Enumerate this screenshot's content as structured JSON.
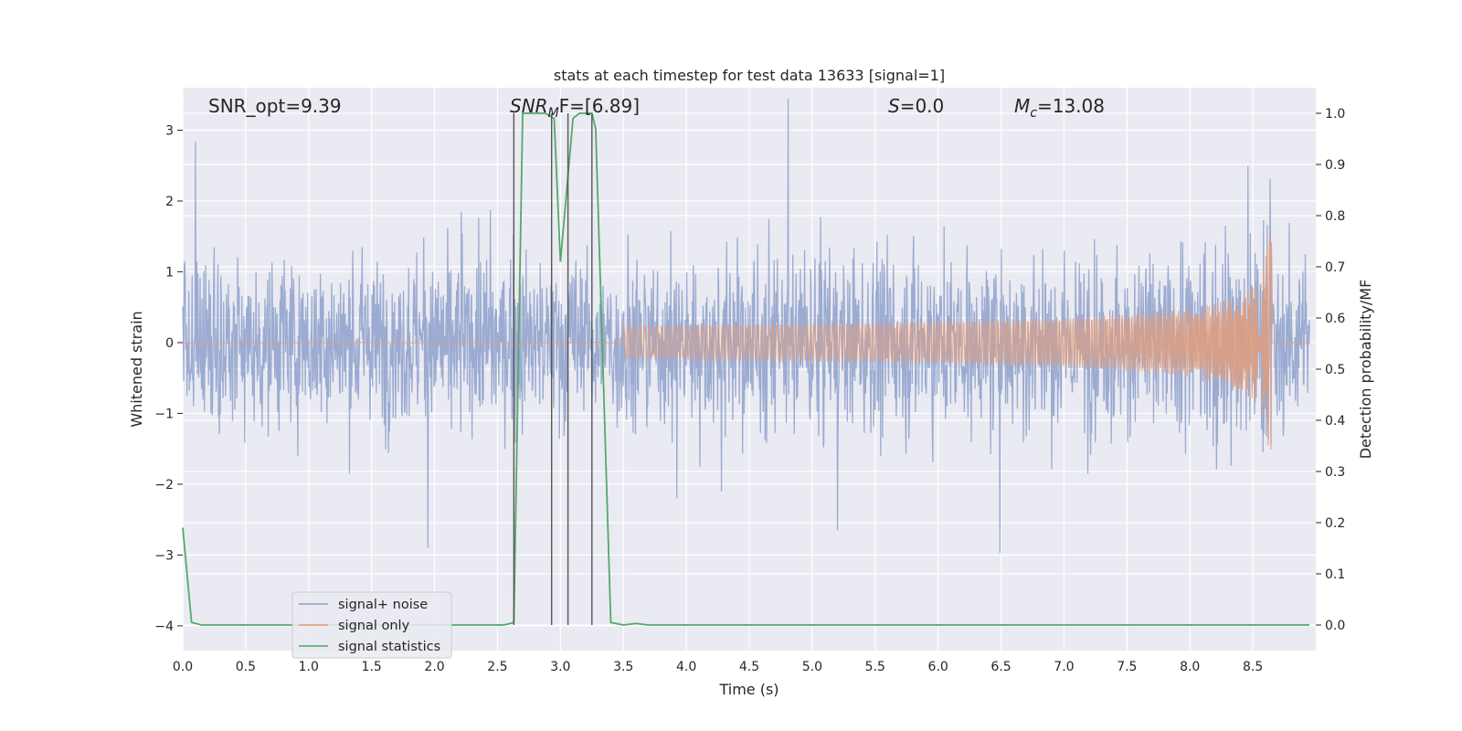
{
  "chart_data": {
    "type": "line",
    "title": "stats at each timestep for test data 13633 [signal=1]",
    "xlabel": "Time (s)",
    "ylabel": "Whitened strain",
    "y2label": "Detection probability/MF",
    "xlim": [
      0.0,
      9.0
    ],
    "ylim": [
      -4.35,
      3.6
    ],
    "y2lim": [
      -0.05,
      1.05
    ],
    "xticks": [
      "0.0",
      "0.5",
      "1.0",
      "1.5",
      "2.0",
      "2.5",
      "3.0",
      "3.5",
      "4.0",
      "4.5",
      "5.0",
      "5.5",
      "6.0",
      "6.5",
      "7.0",
      "7.5",
      "8.0",
      "8.5"
    ],
    "yticks": [
      "3",
      "2",
      "1",
      "0",
      "−1",
      "−2",
      "−3",
      "−4"
    ],
    "y2ticks": [
      "1.0",
      "0.9",
      "0.8",
      "0.7",
      "0.6",
      "0.5",
      "0.4",
      "0.3",
      "0.2",
      "0.1",
      "0.0"
    ],
    "grid": true,
    "legend_position": "lower-left",
    "annotations": {
      "snr_opt": "SNR_opt=9.39",
      "snr_mf_base": "SNR",
      "snr_mf_sub": "M",
      "snr_mf_rest": "F=[6.89]",
      "s_base": "S",
      "s_rest": "=0.0",
      "mc_base": "M",
      "mc_sub": "c",
      "mc_rest": "=13.08"
    },
    "series": [
      {
        "name": "signal+ noise",
        "color": "#8da0cb",
        "description": "whitened noisy strain, approx amplitude envelope ±1.8 with peaks to ±3"
      },
      {
        "name": "signal only",
        "color": "#e19c7d",
        "description": "chirp signal growing in amplitude, merger near t=8.65 s with peak ~1.65",
        "merger_time": 8.65,
        "peak_amplitude": 1.65
      },
      {
        "name": "signal statistics",
        "color": "#55a868",
        "axis": "y2",
        "x": [
          0.0,
          0.07,
          0.15,
          2.55,
          2.6,
          2.63,
          2.7,
          2.88,
          2.95,
          3.0,
          3.1,
          3.15,
          3.25,
          3.28,
          3.4,
          3.5,
          3.6,
          3.7,
          8.95
        ],
        "y": [
          0.19,
          0.005,
          0.0,
          0.0,
          0.003,
          0.005,
          1.0,
          1.0,
          0.99,
          0.71,
          0.99,
          1.0,
          1.0,
          0.97,
          0.005,
          0.0,
          0.003,
          0.0,
          0.0
        ]
      }
    ],
    "vlines": [
      2.63,
      2.93,
      3.06,
      3.25
    ]
  }
}
